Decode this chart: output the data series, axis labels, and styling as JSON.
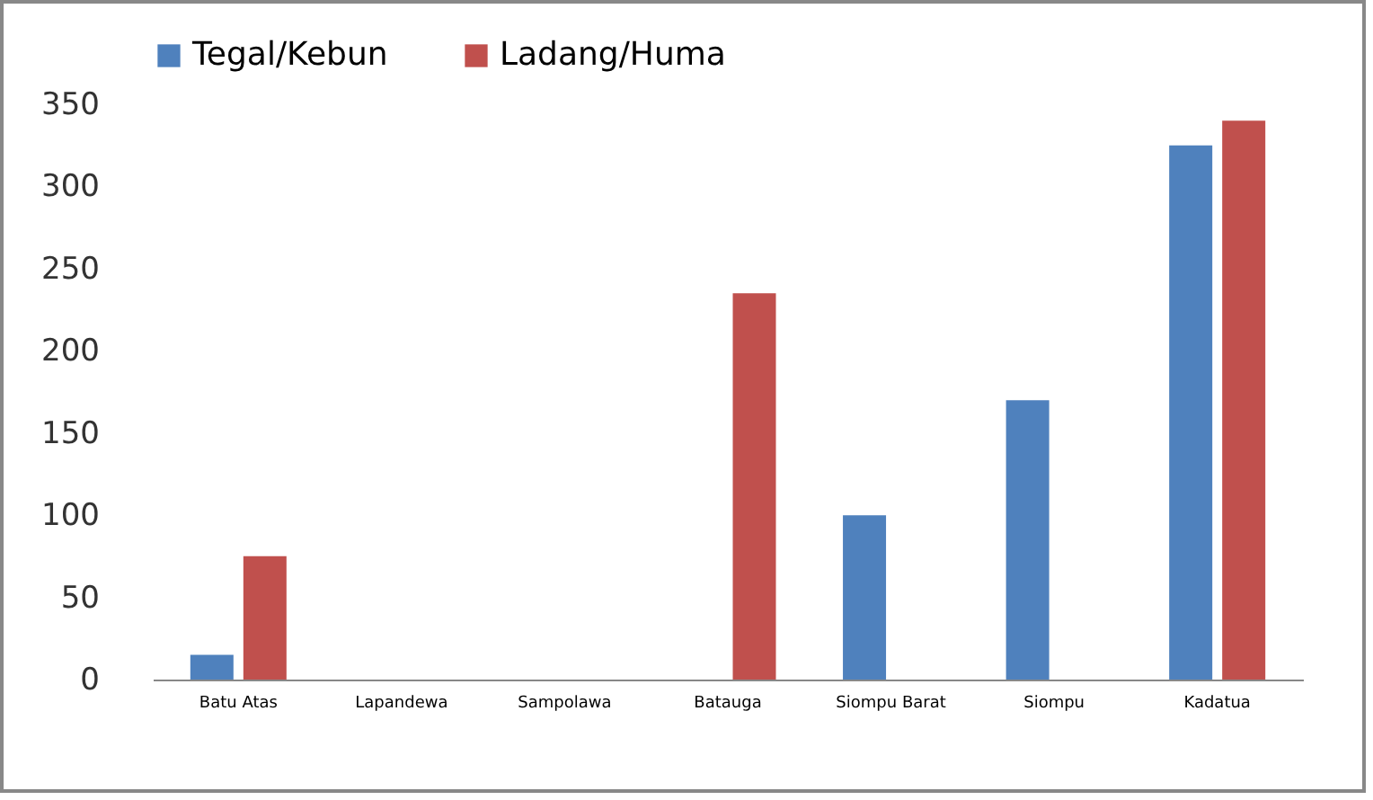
{
  "chart_data": {
    "type": "bar",
    "categories": [
      "Batu Atas",
      "Lapandewa",
      "Sampolawa",
      "Batauga",
      "Siompu Barat",
      "Siompu",
      "Kadatua"
    ],
    "series": [
      {
        "name": "Tegal/Kebun",
        "color": "#4f81bd",
        "values": [
          15,
          0,
          0,
          0,
          100,
          170,
          325
        ]
      },
      {
        "name": "Ladang/Huma",
        "color": "#c0504d",
        "values": [
          75,
          0,
          0,
          235,
          0,
          0,
          340
        ]
      }
    ],
    "ylim": [
      0,
      350
    ],
    "yticks": [
      0,
      50,
      100,
      150,
      200,
      250,
      300,
      350
    ],
    "grid": false,
    "legend": "top"
  }
}
